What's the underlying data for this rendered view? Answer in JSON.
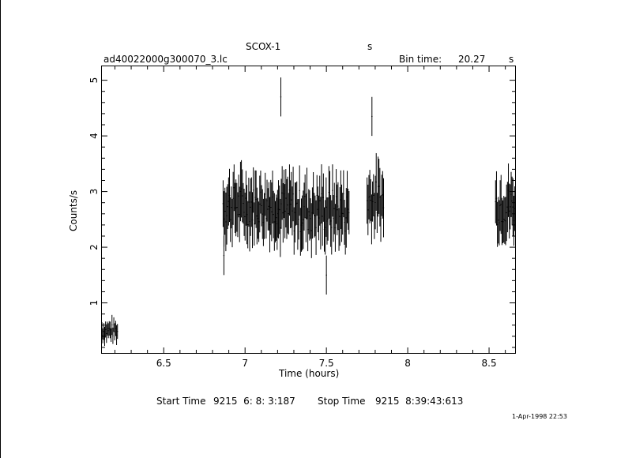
{
  "header": {
    "source": "SCOX-1",
    "source_unit": "s",
    "filename": "ad40022000g300070_3.lc",
    "bin_time_label": "Bin time:",
    "bin_time_value": "20.27",
    "bin_time_unit": "s"
  },
  "footer": {
    "start_label": "Start Time",
    "start_value": "9215  6: 8: 3:187",
    "stop_label": "Stop Time",
    "stop_value": "9215  8:39:43:613",
    "plot_date": "1-Apr-1998 22:53"
  },
  "chart_data": {
    "type": "scatter",
    "title": "SCOX-1",
    "xlabel": "Time (hours)",
    "ylabel": "Counts/s",
    "xlim": [
      6.12,
      8.66
    ],
    "ylim": [
      0.1,
      5.25
    ],
    "xticks": [
      6.5,
      7,
      7.5,
      8,
      8.5
    ],
    "xtick_labels": [
      "6.5",
      "7",
      "7.5",
      "8",
      "8.5"
    ],
    "yticks": [
      1,
      2,
      3,
      4,
      5
    ],
    "ytick_labels": [
      "1",
      "2",
      "3",
      "4",
      "5"
    ],
    "grid": false,
    "legend": "none",
    "color": "#000000",
    "series": [
      {
        "segments": [
          {
            "t0": 6.12,
            "t1": 6.22,
            "mean": 0.5,
            "spread": 0.12,
            "err": 0.15
          },
          {
            "t0": 6.865,
            "t1": 7.2,
            "mean": 2.75,
            "spread": 0.35,
            "err": 0.45
          },
          {
            "t0": 7.2,
            "t1": 7.64,
            "mean": 2.65,
            "spread": 0.4,
            "err": 0.45
          },
          {
            "t0": 7.75,
            "t1": 7.855,
            "mean": 2.85,
            "spread": 0.35,
            "err": 0.45
          },
          {
            "t0": 8.54,
            "t1": 8.66,
            "mean": 2.75,
            "spread": 0.35,
            "err": 0.45
          }
        ],
        "peaks": [
          {
            "x": 6.87,
            "y": 1.85
          },
          {
            "x": 7.22,
            "y": 4.7
          },
          {
            "x": 7.78,
            "y": 4.35
          },
          {
            "x": 7.5,
            "y": 1.5
          }
        ]
      }
    ]
  }
}
